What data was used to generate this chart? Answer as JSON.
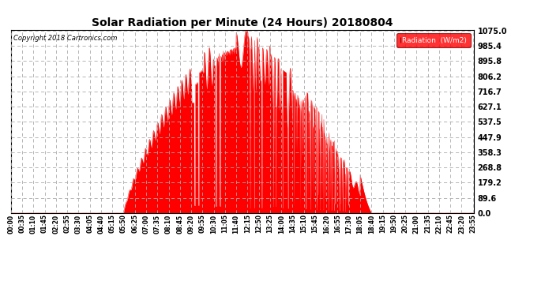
{
  "title": "Solar Radiation per Minute (24 Hours) 20180804",
  "copyright_text": "Copyright 2018 Cartronics.com",
  "legend_label": "Radiation  (W/m2)",
  "fill_color": "#FF0000",
  "line_color": "#FF0000",
  "background_color": "#FFFFFF",
  "grid_color": "#AAAAAA",
  "legend_bg": "#FF0000",
  "legend_text_color": "#FFFFFF",
  "yticks": [
    0.0,
    89.6,
    179.2,
    268.8,
    358.3,
    447.9,
    537.5,
    627.1,
    716.7,
    806.2,
    895.8,
    985.4,
    1075.0
  ],
  "ymax": 1075.0,
  "ymin": 0.0,
  "sunrise_minute": 350,
  "sunset_minute": 1120,
  "xtick_labels": [
    "00:00",
    "00:35",
    "01:10",
    "01:45",
    "02:20",
    "02:55",
    "03:30",
    "04:05",
    "04:40",
    "05:15",
    "05:50",
    "06:25",
    "07:00",
    "07:35",
    "08:10",
    "08:45",
    "09:20",
    "09:55",
    "10:30",
    "11:05",
    "11:40",
    "12:15",
    "12:50",
    "13:25",
    "14:00",
    "14:35",
    "15:10",
    "15:45",
    "16:20",
    "16:55",
    "17:30",
    "18:05",
    "18:40",
    "19:15",
    "19:50",
    "20:25",
    "21:00",
    "21:35",
    "22:10",
    "22:45",
    "23:20",
    "23:55"
  ],
  "xtick_positions": [
    0,
    35,
    70,
    105,
    140,
    175,
    210,
    245,
    280,
    315,
    350,
    385,
    420,
    455,
    490,
    525,
    560,
    595,
    630,
    665,
    700,
    735,
    770,
    805,
    840,
    875,
    910,
    945,
    980,
    1015,
    1050,
    1085,
    1120,
    1155,
    1190,
    1225,
    1260,
    1295,
    1330,
    1365,
    1400,
    1435
  ]
}
